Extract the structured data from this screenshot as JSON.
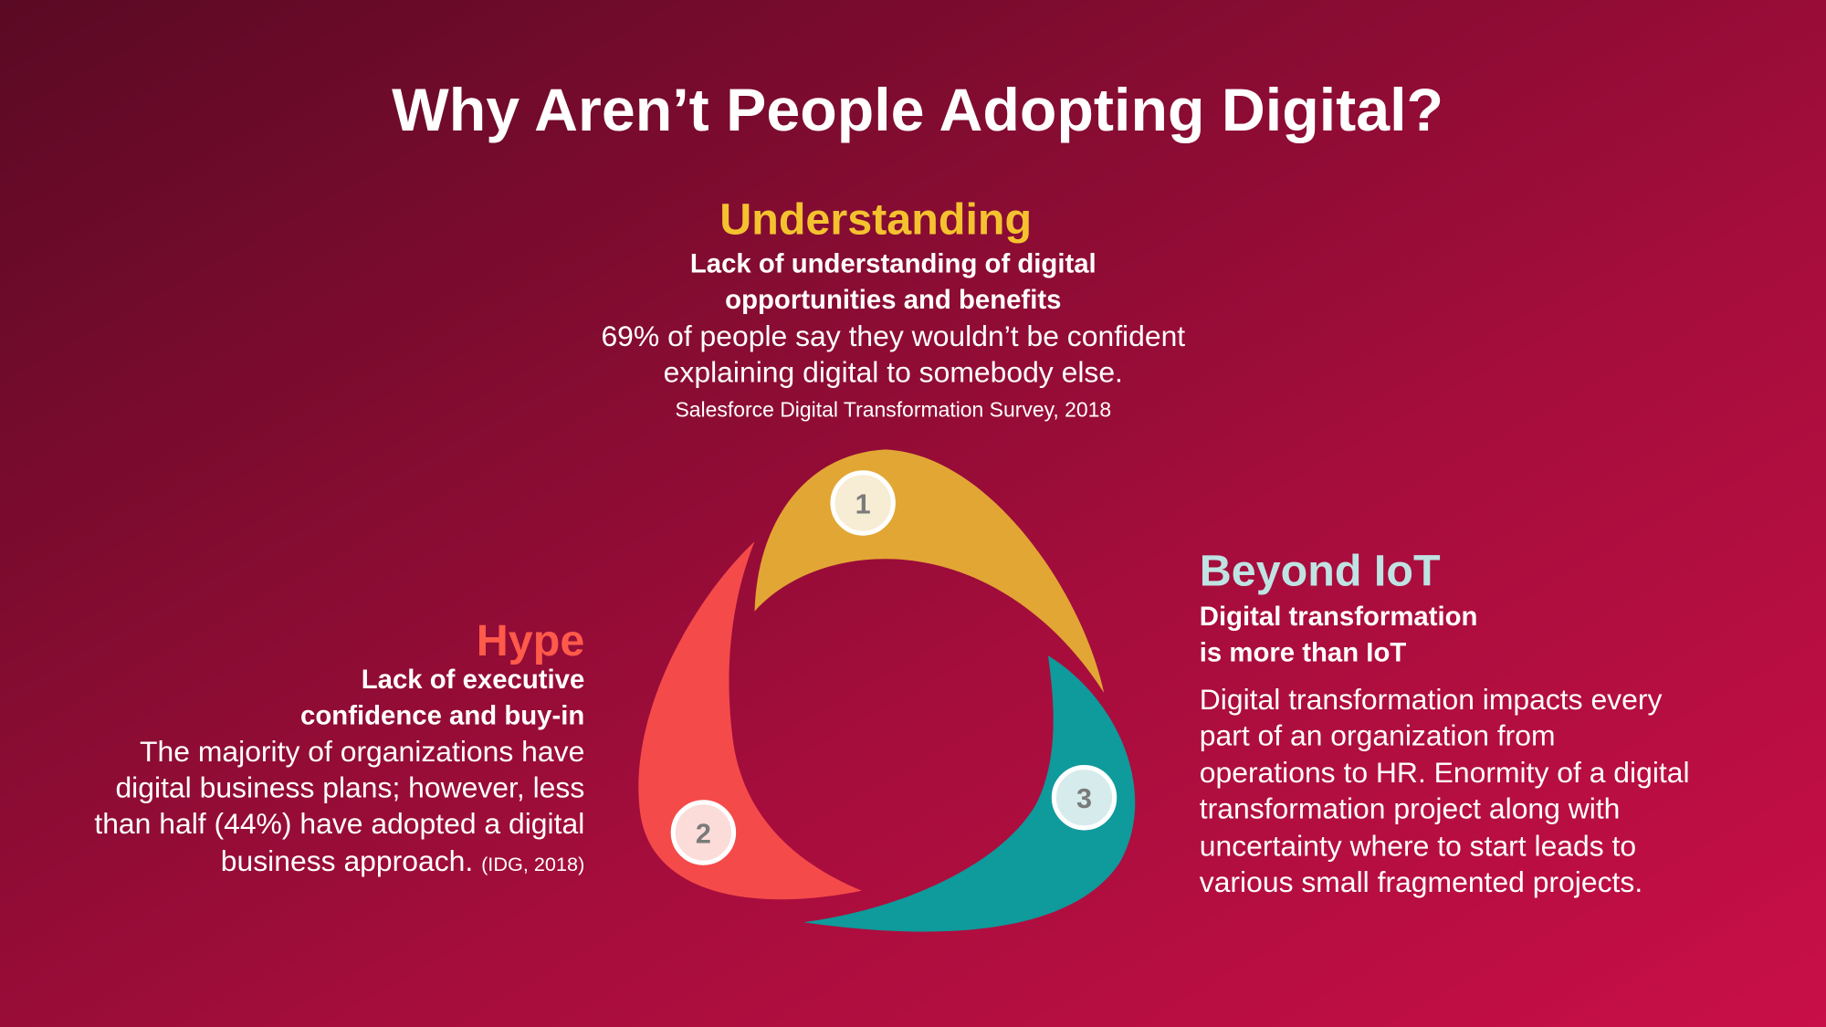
{
  "title": "Why Aren’t People Adopting Digital?",
  "understanding": {
    "heading": "Understanding",
    "subheading": [
      "Lack of understanding of digital",
      "opportunities and benefits"
    ],
    "body": [
      "69% of people say they wouldn’t be confident",
      "explaining digital to somebody else."
    ],
    "source": "Salesforce Digital Transformation Survey, 2018"
  },
  "hype": {
    "heading": "Hype",
    "subheading": [
      "Lack of executive",
      "confidence and buy-in"
    ],
    "body": [
      "The majority of organizations have",
      "digital business plans; however, less",
      "than half (44%) have adopted a digital",
      "business approach."
    ],
    "source": "(IDG, 2018)"
  },
  "beyond_iot": {
    "heading": "Beyond IoT",
    "subheading": [
      "Digital transformation",
      "is more than IoT"
    ],
    "body": [
      "Digital transformation impacts every",
      "part of an organization from",
      "operations to HR. Enormity of a digital",
      "transformation project along with",
      "uncertainty where to start leads to",
      "various small fragmented projects."
    ]
  },
  "cycle": {
    "steps": [
      "1",
      "2",
      "3"
    ]
  }
}
